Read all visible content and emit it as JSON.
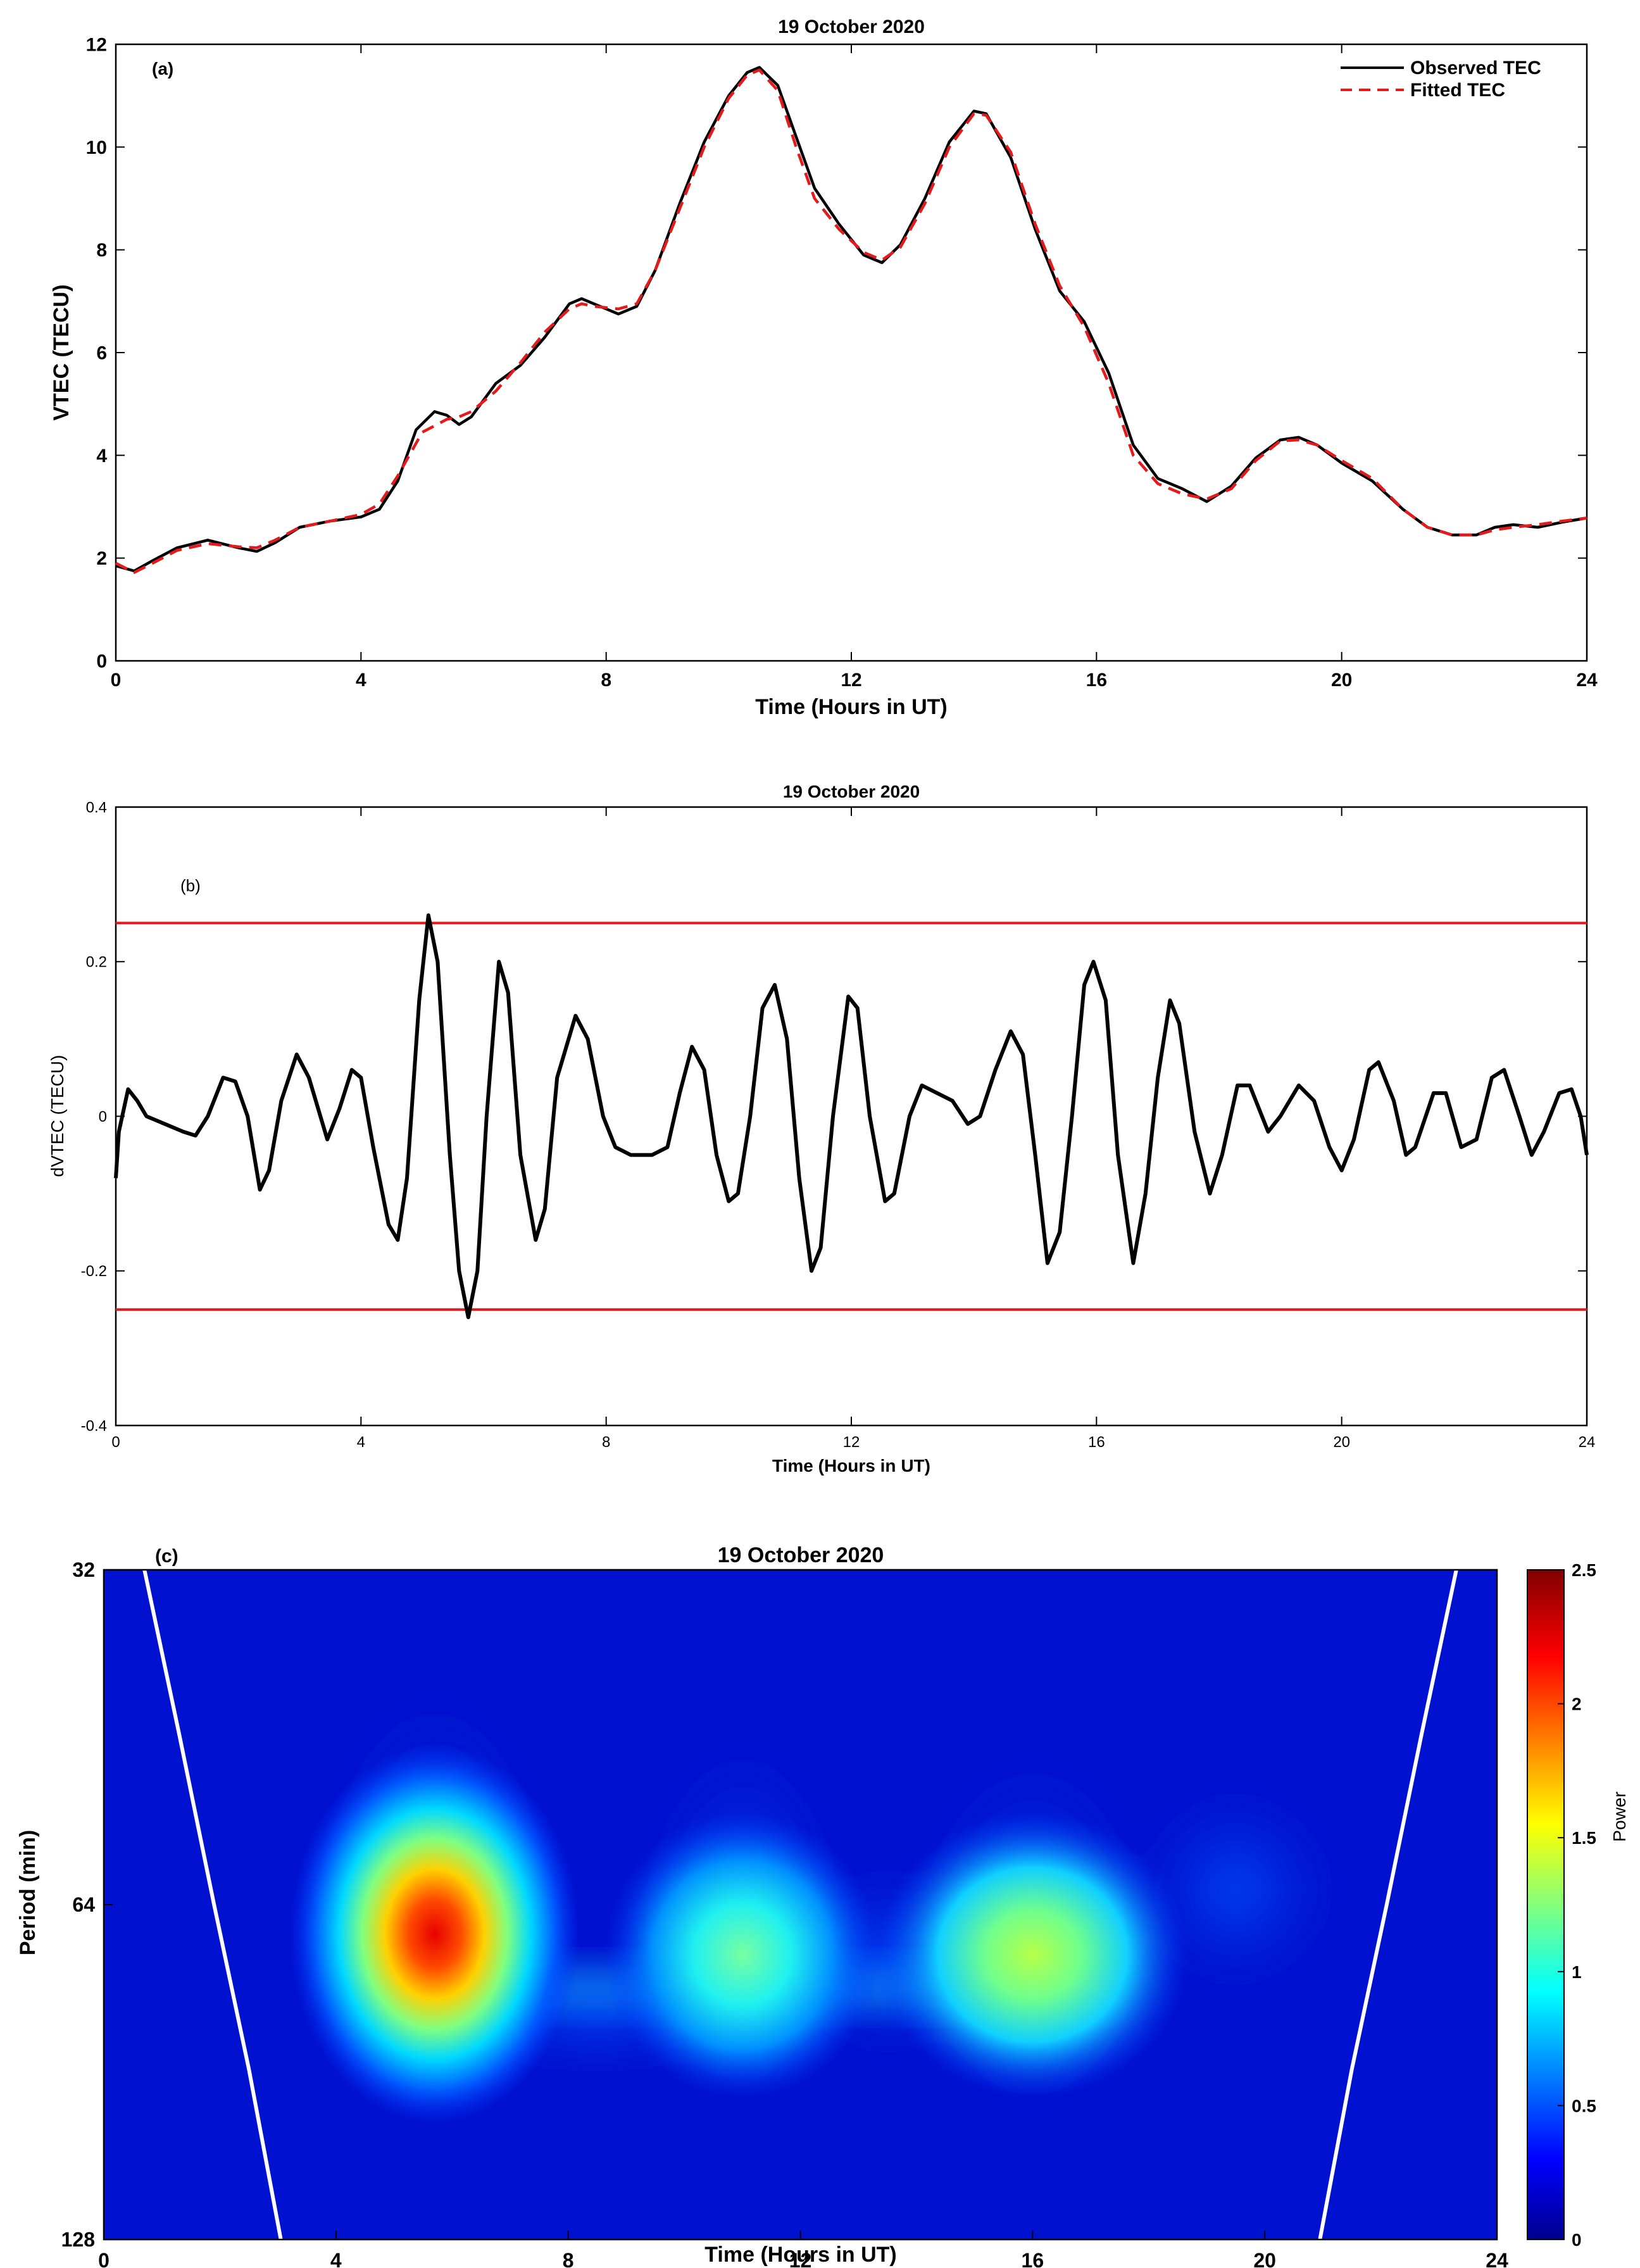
{
  "chart_data": [
    {
      "type": "line",
      "panel_label": "(a)",
      "title": "19 October 2020",
      "xlabel": "Time (Hours in UT)",
      "ylabel": "VTEC (TECU)",
      "xlim": [
        0,
        24
      ],
      "ylim": [
        0,
        12
      ],
      "xticks": [
        0,
        4,
        8,
        12,
        16,
        20,
        24
      ],
      "yticks": [
        0,
        2,
        4,
        6,
        8,
        10,
        12
      ],
      "legend_position": "top-right",
      "grid": false,
      "series": [
        {
          "name": "Observed TEC",
          "color": "#000000",
          "style": "solid",
          "points": [
            [
              0,
              1.85
            ],
            [
              0.3,
              1.75
            ],
            [
              0.6,
              1.95
            ],
            [
              1.0,
              2.2
            ],
            [
              1.5,
              2.35
            ],
            [
              2.0,
              2.2
            ],
            [
              2.3,
              2.13
            ],
            [
              2.6,
              2.3
            ],
            [
              3.0,
              2.6
            ],
            [
              3.5,
              2.72
            ],
            [
              4.0,
              2.8
            ],
            [
              4.3,
              2.95
            ],
            [
              4.6,
              3.5
            ],
            [
              4.9,
              4.5
            ],
            [
              5.2,
              4.85
            ],
            [
              5.4,
              4.78
            ],
            [
              5.6,
              4.6
            ],
            [
              5.8,
              4.75
            ],
            [
              6.2,
              5.4
            ],
            [
              6.6,
              5.75
            ],
            [
              7.0,
              6.3
            ],
            [
              7.4,
              6.95
            ],
            [
              7.6,
              7.05
            ],
            [
              7.8,
              6.95
            ],
            [
              8.2,
              6.75
            ],
            [
              8.5,
              6.9
            ],
            [
              8.8,
              7.6
            ],
            [
              9.2,
              8.9
            ],
            [
              9.6,
              10.1
            ],
            [
              10.0,
              11.0
            ],
            [
              10.3,
              11.45
            ],
            [
              10.5,
              11.55
            ],
            [
              10.8,
              11.2
            ],
            [
              11.1,
              10.2
            ],
            [
              11.4,
              9.2
            ],
            [
              11.8,
              8.5
            ],
            [
              12.2,
              7.9
            ],
            [
              12.5,
              7.75
            ],
            [
              12.8,
              8.1
            ],
            [
              13.2,
              9.0
            ],
            [
              13.6,
              10.1
            ],
            [
              14.0,
              10.7
            ],
            [
              14.2,
              10.65
            ],
            [
              14.6,
              9.8
            ],
            [
              15.0,
              8.4
            ],
            [
              15.4,
              7.2
            ],
            [
              15.8,
              6.6
            ],
            [
              16.2,
              5.6
            ],
            [
              16.6,
              4.2
            ],
            [
              17.0,
              3.55
            ],
            [
              17.4,
              3.35
            ],
            [
              17.8,
              3.1
            ],
            [
              18.2,
              3.4
            ],
            [
              18.6,
              3.95
            ],
            [
              19.0,
              4.3
            ],
            [
              19.3,
              4.35
            ],
            [
              19.6,
              4.2
            ],
            [
              20.0,
              3.85
            ],
            [
              20.5,
              3.5
            ],
            [
              21.0,
              2.95
            ],
            [
              21.4,
              2.6
            ],
            [
              21.8,
              2.45
            ],
            [
              22.2,
              2.45
            ],
            [
              22.5,
              2.6
            ],
            [
              22.8,
              2.65
            ],
            [
              23.2,
              2.6
            ],
            [
              23.6,
              2.7
            ],
            [
              24.0,
              2.78
            ]
          ]
        },
        {
          "name": "Fitted TEC",
          "color": "#e41a1c",
          "style": "dashed",
          "points": [
            [
              0,
              1.9
            ],
            [
              0.3,
              1.72
            ],
            [
              0.6,
              1.9
            ],
            [
              1.0,
              2.15
            ],
            [
              1.5,
              2.28
            ],
            [
              2.0,
              2.22
            ],
            [
              2.3,
              2.2
            ],
            [
              2.6,
              2.35
            ],
            [
              3.0,
              2.6
            ],
            [
              3.5,
              2.72
            ],
            [
              4.0,
              2.85
            ],
            [
              4.3,
              3.05
            ],
            [
              4.6,
              3.6
            ],
            [
              5.0,
              4.45
            ],
            [
              5.4,
              4.7
            ],
            [
              5.6,
              4.75
            ],
            [
              5.8,
              4.85
            ],
            [
              6.2,
              5.25
            ],
            [
              6.6,
              5.8
            ],
            [
              7.0,
              6.4
            ],
            [
              7.4,
              6.85
            ],
            [
              7.6,
              6.95
            ],
            [
              7.8,
              6.9
            ],
            [
              8.2,
              6.85
            ],
            [
              8.5,
              6.95
            ],
            [
              8.8,
              7.6
            ],
            [
              9.2,
              8.8
            ],
            [
              9.6,
              10.0
            ],
            [
              10.0,
              10.95
            ],
            [
              10.3,
              11.4
            ],
            [
              10.5,
              11.5
            ],
            [
              10.8,
              11.1
            ],
            [
              11.1,
              10.0
            ],
            [
              11.4,
              9.0
            ],
            [
              11.8,
              8.4
            ],
            [
              12.2,
              7.95
            ],
            [
              12.5,
              7.8
            ],
            [
              12.8,
              8.05
            ],
            [
              13.2,
              8.9
            ],
            [
              13.6,
              10.0
            ],
            [
              14.0,
              10.65
            ],
            [
              14.2,
              10.62
            ],
            [
              14.6,
              9.9
            ],
            [
              15.0,
              8.5
            ],
            [
              15.4,
              7.3
            ],
            [
              15.8,
              6.5
            ],
            [
              16.2,
              5.4
            ],
            [
              16.6,
              4.0
            ],
            [
              17.0,
              3.45
            ],
            [
              17.4,
              3.25
            ],
            [
              17.8,
              3.15
            ],
            [
              18.2,
              3.35
            ],
            [
              18.6,
              3.9
            ],
            [
              19.0,
              4.28
            ],
            [
              19.3,
              4.3
            ],
            [
              19.6,
              4.2
            ],
            [
              20.0,
              3.9
            ],
            [
              20.5,
              3.55
            ],
            [
              21.0,
              2.95
            ],
            [
              21.4,
              2.6
            ],
            [
              21.8,
              2.45
            ],
            [
              22.2,
              2.45
            ],
            [
              22.5,
              2.55
            ],
            [
              22.8,
              2.6
            ],
            [
              23.2,
              2.65
            ],
            [
              23.6,
              2.72
            ],
            [
              24.0,
              2.78
            ]
          ]
        }
      ]
    },
    {
      "type": "line",
      "panel_label": "(b)",
      "title": "19 October 2020",
      "xlabel": "Time (Hours in UT)",
      "ylabel": "dVTEC (TECU)",
      "xlim": [
        0,
        24
      ],
      "ylim": [
        -0.4,
        0.4
      ],
      "xticks": [
        0,
        4,
        8,
        12,
        16,
        20,
        24
      ],
      "yticks": [
        -0.4,
        -0.2,
        0,
        0.2,
        0.4
      ],
      "grid": false,
      "thresholds": [
        {
          "y": 0.25,
          "color": "#e41a1c"
        },
        {
          "y": -0.25,
          "color": "#e41a1c"
        }
      ],
      "series": [
        {
          "color": "#000000",
          "style": "solid",
          "points": [
            [
              0,
              -0.08
            ],
            [
              0.05,
              -0.02
            ],
            [
              0.2,
              0.035
            ],
            [
              0.35,
              0.02
            ],
            [
              0.5,
              0.0
            ],
            [
              0.8,
              -0.01
            ],
            [
              1.1,
              -0.02
            ],
            [
              1.3,
              -0.025
            ],
            [
              1.5,
              0.0
            ],
            [
              1.75,
              0.05
            ],
            [
              1.95,
              0.045
            ],
            [
              2.15,
              0.0
            ],
            [
              2.35,
              -0.095
            ],
            [
              2.5,
              -0.07
            ],
            [
              2.7,
              0.02
            ],
            [
              2.95,
              0.08
            ],
            [
              3.15,
              0.05
            ],
            [
              3.45,
              -0.03
            ],
            [
              3.65,
              0.01
            ],
            [
              3.85,
              0.06
            ],
            [
              4.0,
              0.05
            ],
            [
              4.2,
              -0.04
            ],
            [
              4.45,
              -0.14
            ],
            [
              4.6,
              -0.16
            ],
            [
              4.75,
              -0.08
            ],
            [
              4.95,
              0.15
            ],
            [
              5.1,
              0.26
            ],
            [
              5.25,
              0.2
            ],
            [
              5.45,
              -0.05
            ],
            [
              5.6,
              -0.2
            ],
            [
              5.75,
              -0.26
            ],
            [
              5.9,
              -0.2
            ],
            [
              6.05,
              0.0
            ],
            [
              6.25,
              0.2
            ],
            [
              6.4,
              0.16
            ],
            [
              6.6,
              -0.05
            ],
            [
              6.85,
              -0.16
            ],
            [
              7.0,
              -0.12
            ],
            [
              7.2,
              0.05
            ],
            [
              7.5,
              0.13
            ],
            [
              7.7,
              0.1
            ],
            [
              7.95,
              0.0
            ],
            [
              8.15,
              -0.04
            ],
            [
              8.4,
              -0.05
            ],
            [
              8.75,
              -0.05
            ],
            [
              9.0,
              -0.04
            ],
            [
              9.2,
              0.03
            ],
            [
              9.4,
              0.09
            ],
            [
              9.6,
              0.06
            ],
            [
              9.8,
              -0.05
            ],
            [
              10.0,
              -0.11
            ],
            [
              10.15,
              -0.1
            ],
            [
              10.35,
              0.0
            ],
            [
              10.55,
              0.14
            ],
            [
              10.75,
              0.17
            ],
            [
              10.95,
              0.1
            ],
            [
              11.15,
              -0.08
            ],
            [
              11.35,
              -0.2
            ],
            [
              11.5,
              -0.17
            ],
            [
              11.7,
              0.0
            ],
            [
              11.95,
              0.155
            ],
            [
              12.1,
              0.14
            ],
            [
              12.3,
              0.0
            ],
            [
              12.55,
              -0.11
            ],
            [
              12.7,
              -0.1
            ],
            [
              12.95,
              0.0
            ],
            [
              13.15,
              0.04
            ],
            [
              13.4,
              0.03
            ],
            [
              13.65,
              0.02
            ],
            [
              13.9,
              -0.01
            ],
            [
              14.1,
              0.0
            ],
            [
              14.35,
              0.06
            ],
            [
              14.6,
              0.11
            ],
            [
              14.8,
              0.08
            ],
            [
              15.0,
              -0.05
            ],
            [
              15.2,
              -0.19
            ],
            [
              15.4,
              -0.15
            ],
            [
              15.6,
              0.0
            ],
            [
              15.8,
              0.17
            ],
            [
              15.95,
              0.2
            ],
            [
              16.15,
              0.15
            ],
            [
              16.35,
              -0.05
            ],
            [
              16.6,
              -0.19
            ],
            [
              16.8,
              -0.1
            ],
            [
              17.0,
              0.05
            ],
            [
              17.2,
              0.15
            ],
            [
              17.35,
              0.12
            ],
            [
              17.6,
              -0.02
            ],
            [
              17.85,
              -0.1
            ],
            [
              18.05,
              -0.05
            ],
            [
              18.3,
              0.04
            ],
            [
              18.5,
              0.04
            ],
            [
              18.8,
              -0.02
            ],
            [
              19.0,
              0.0
            ],
            [
              19.3,
              0.04
            ],
            [
              19.55,
              0.02
            ],
            [
              19.8,
              -0.04
            ],
            [
              20.0,
              -0.07
            ],
            [
              20.2,
              -0.03
            ],
            [
              20.45,
              0.06
            ],
            [
              20.6,
              0.07
            ],
            [
              20.85,
              0.02
            ],
            [
              21.05,
              -0.05
            ],
            [
              21.2,
              -0.04
            ],
            [
              21.5,
              0.03
            ],
            [
              21.7,
              0.03
            ],
            [
              21.95,
              -0.04
            ],
            [
              22.2,
              -0.03
            ],
            [
              22.45,
              0.05
            ],
            [
              22.65,
              0.06
            ],
            [
              22.9,
              0.0
            ],
            [
              23.1,
              -0.05
            ],
            [
              23.3,
              -0.02
            ],
            [
              23.55,
              0.03
            ],
            [
              23.75,
              0.035
            ],
            [
              23.9,
              0.0
            ],
            [
              24.0,
              -0.05
            ]
          ]
        }
      ]
    },
    {
      "type": "heatmap",
      "panel_label": "(c)",
      "title": "19 October 2020",
      "xlabel": "Time (Hours in UT)",
      "ylabel": "Period (min)",
      "xlim": [
        0,
        24
      ],
      "ylim": [
        32,
        128
      ],
      "y_scale": "log2",
      "y_reversed": true,
      "xticks": [
        0,
        4,
        8,
        12,
        16,
        20,
        24
      ],
      "yticks": [
        32,
        64,
        128
      ],
      "colorbar": {
        "label": "Power",
        "range": [
          0,
          2.5
        ],
        "ticks": [
          0,
          0.5,
          1,
          1.5,
          2,
          2.5
        ],
        "colormap": "jet"
      },
      "blobs": [
        {
          "t": 5.7,
          "period": 68,
          "power": 2.2
        },
        {
          "t": 11.0,
          "period": 71,
          "power": 1.05
        },
        {
          "t": 16.0,
          "period": 71,
          "power": 1.2
        }
      ],
      "cone_of_influence_color": "#ffffff"
    }
  ]
}
